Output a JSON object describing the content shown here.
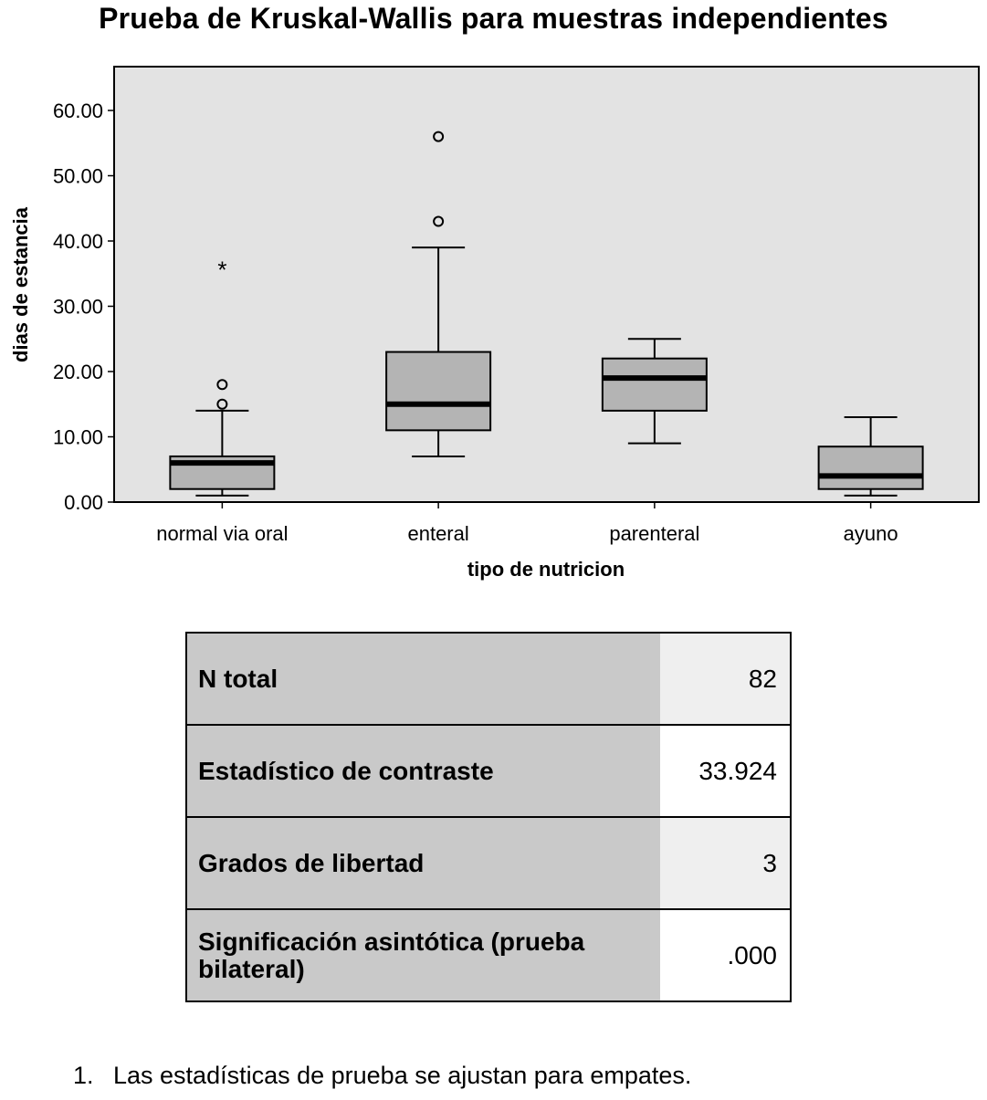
{
  "chart_data": {
    "type": "box",
    "title": "Prueba de Kruskal-Wallis para muestras independientes",
    "xlabel": "tipo de nutricion",
    "ylabel": "dias de estancia",
    "ylim": [
      0,
      66
    ],
    "yticks": [
      0,
      10,
      20,
      30,
      40,
      50,
      60
    ],
    "ytick_labels": [
      "0.00",
      "10.00",
      "20.00",
      "30.00",
      "40.00",
      "50.00",
      "60.00"
    ],
    "grid": false,
    "categories": [
      "normal via oral",
      "enteral",
      "parenteral",
      "ayuno"
    ],
    "boxes": [
      {
        "category": "normal via oral",
        "min": 1,
        "q1": 2,
        "median": 6,
        "q3": 7,
        "max": 14,
        "outliers": [
          15,
          18
        ],
        "extremes": [
          36
        ]
      },
      {
        "category": "enteral",
        "min": 7,
        "q1": 11,
        "median": 15,
        "q3": 23,
        "max": 39,
        "outliers": [
          43,
          56
        ],
        "extremes": []
      },
      {
        "category": "parenteral",
        "min": 9,
        "q1": 14,
        "median": 19,
        "q3": 22,
        "max": 25,
        "outliers": [],
        "extremes": []
      },
      {
        "category": "ayuno",
        "min": 1,
        "q1": 2,
        "median": 4,
        "q3": 8.5,
        "max": 13,
        "outliers": [],
        "extremes": []
      }
    ],
    "colors": {
      "plot_bg": "#e3e3e3",
      "box_fill": "#b4b4b4",
      "median": "#000000"
    }
  },
  "table": {
    "rows": [
      {
        "label": "N total",
        "value": "82"
      },
      {
        "label": "Estadístico de contraste",
        "value": "33.924"
      },
      {
        "label": "Grados de libertad",
        "value": "3"
      },
      {
        "label": "Significación asintótica (prueba bilateral)",
        "value": ".000"
      }
    ]
  },
  "footnote": {
    "number": "1.",
    "text": "Las estadísticas de prueba se ajustan para empates."
  }
}
